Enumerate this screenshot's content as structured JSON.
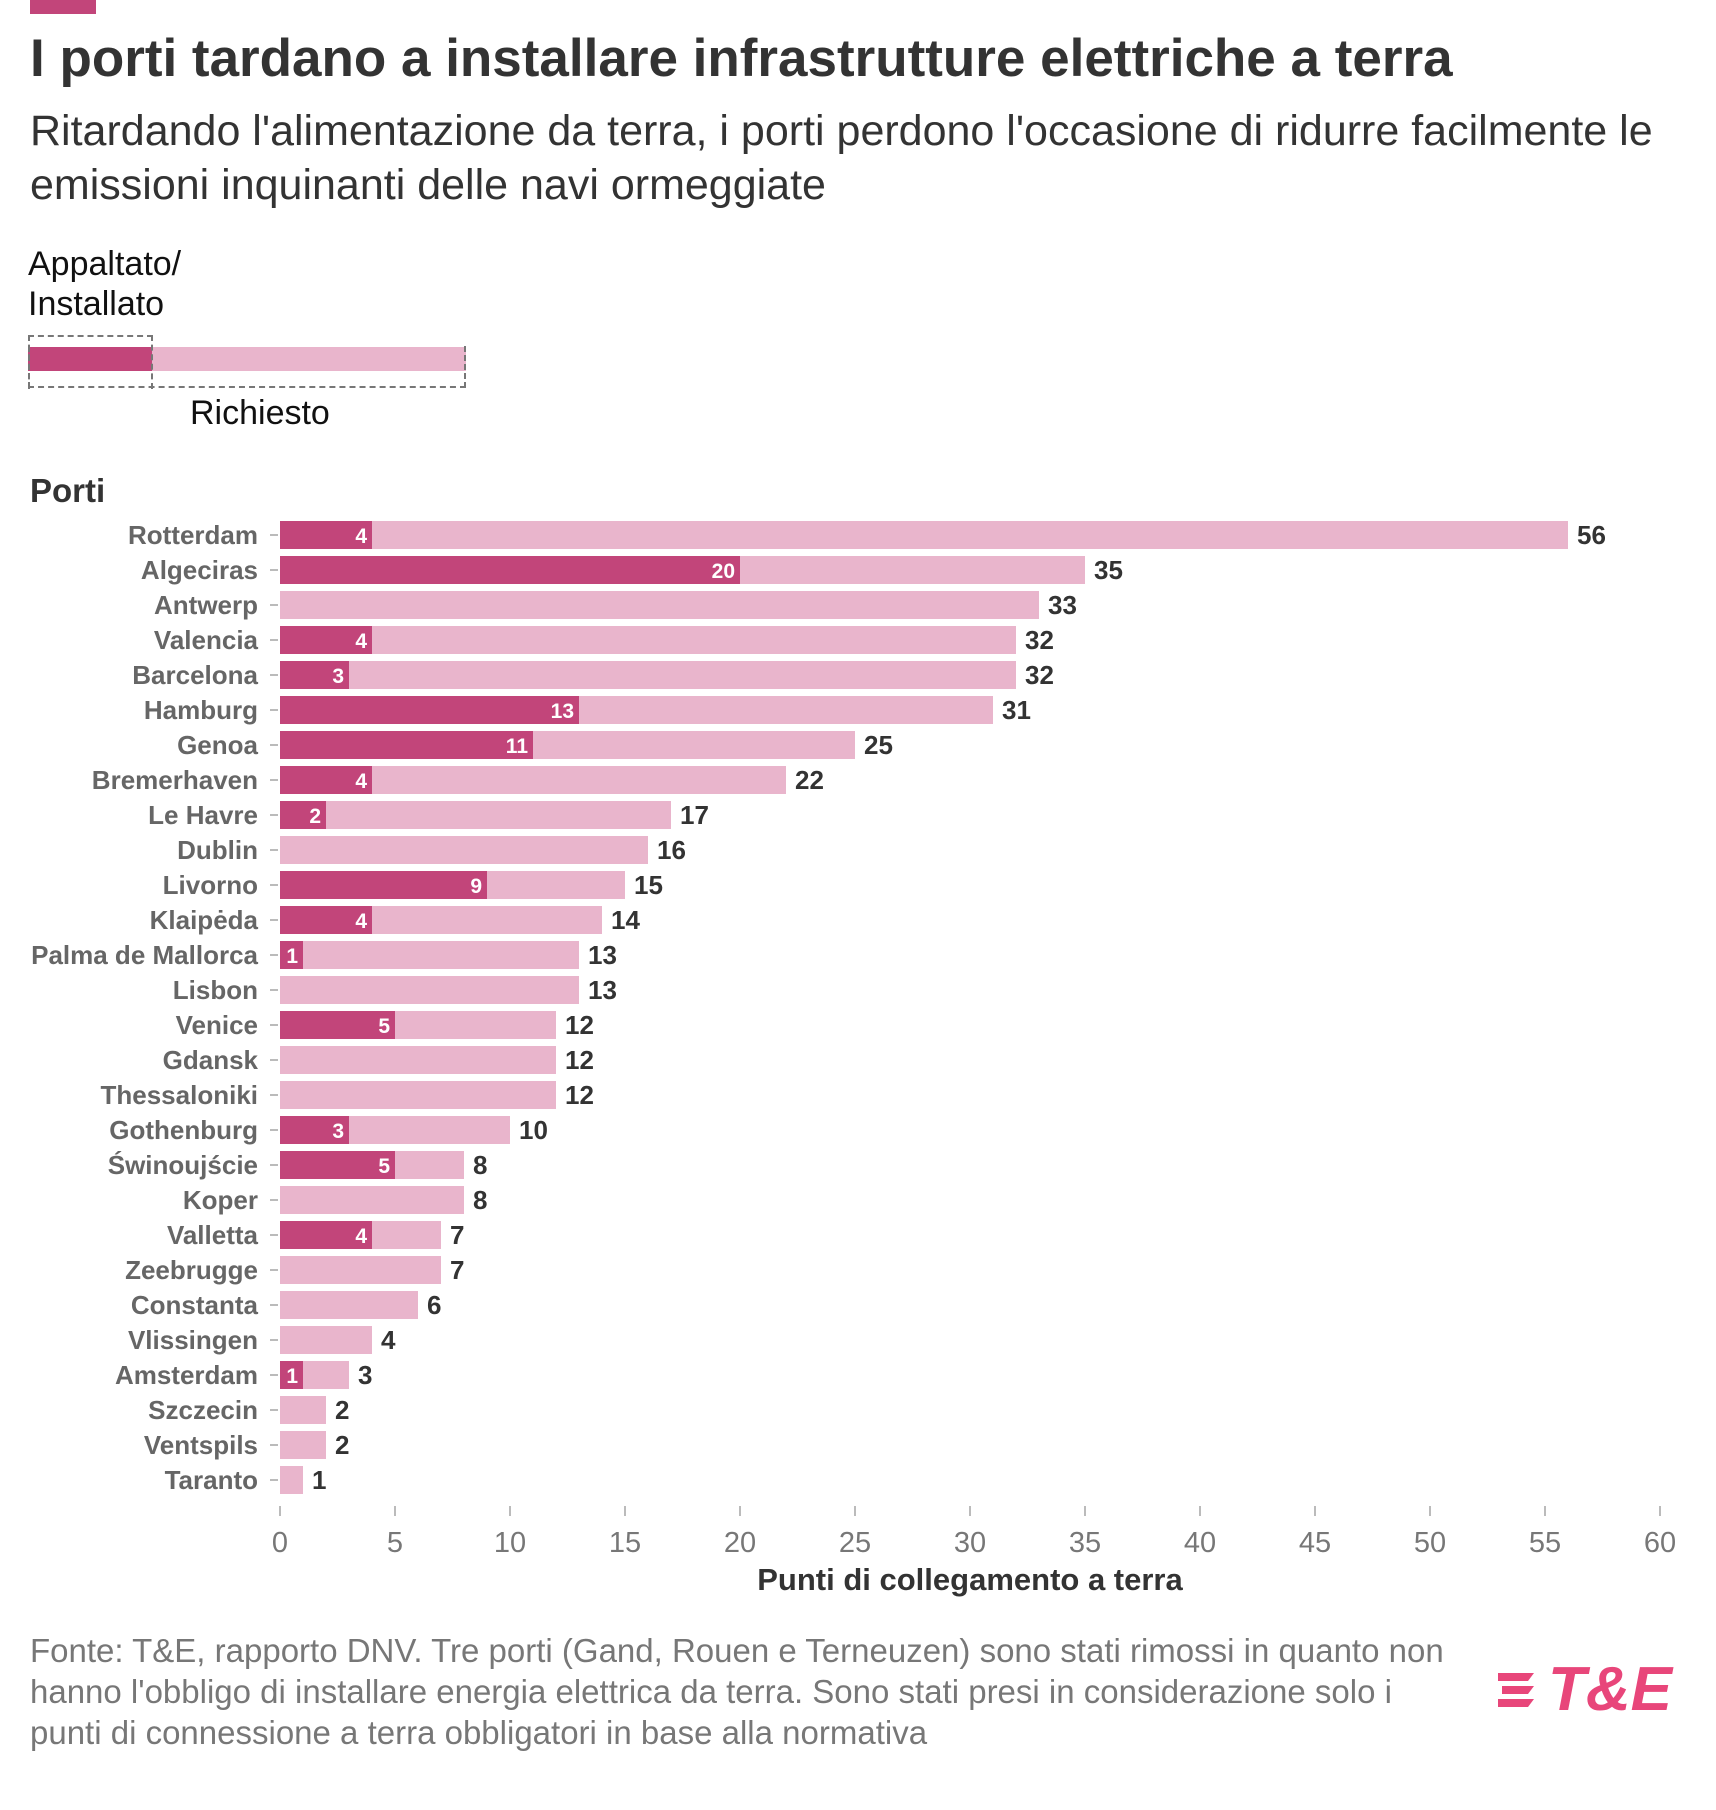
{
  "header": {
    "title": "I porti tardano a installare infrastrutture elettriche a terra",
    "subtitle": "Ritardando l'alimentazione da terra, i porti perdono l'occasione di ridurre facilmente le emissioni inquinanti delle navi ormeggiate"
  },
  "legend": {
    "contracted_label": "Appaltato/\nInstallato",
    "required_label": "Richiesto"
  },
  "colors": {
    "contracted": "#c2457a",
    "required": "#e9b5cc",
    "accent": "#c2457a",
    "logo": "#e8467a"
  },
  "footer": {
    "source": "Fonte: T&E, rapporto DNV. Tre porti (Gand, Rouen e Terneuzen) sono stati rimossi in quanto non hanno l'obbligo di installare energia elettrica da terra. Sono stati presi in considerazione solo i punti di connessione a terra obbligatori in base alla normativa",
    "logo_text": "T&E"
  },
  "chart_data": {
    "type": "bar",
    "orientation": "horizontal",
    "ylabel": "Porti",
    "xlabel": "Punti di collegamento a terra",
    "xlim": [
      0,
      60
    ],
    "xticks": [
      0,
      5,
      10,
      15,
      20,
      25,
      30,
      35,
      40,
      45,
      50,
      55,
      60
    ],
    "grid": false,
    "categories": [
      "Rotterdam",
      "Algeciras",
      "Antwerp",
      "Valencia",
      "Barcelona",
      "Hamburg",
      "Genoa",
      "Bremerhaven",
      "Le Havre",
      "Dublin",
      "Livorno",
      "Klaipėda",
      "Palma de Mallorca",
      "Lisbon",
      "Venice",
      "Gdansk",
      "Thessaloniki",
      "Gothenburg",
      "Świnoujście",
      "Koper",
      "Valletta",
      "Zeebrugge",
      "Constanta",
      "Vlissingen",
      "Amsterdam",
      "Szczecin",
      "Ventspils",
      "Taranto"
    ],
    "series": [
      {
        "name": "Appaltato/Installato",
        "values": [
          4,
          20,
          0,
          4,
          3,
          13,
          11,
          4,
          2,
          0,
          9,
          4,
          1,
          0,
          5,
          0,
          0,
          3,
          5,
          0,
          4,
          0,
          0,
          0,
          1,
          0,
          0,
          0
        ]
      },
      {
        "name": "Richiesto",
        "values": [
          56,
          35,
          33,
          32,
          32,
          31,
          25,
          22,
          17,
          16,
          15,
          14,
          13,
          13,
          12,
          12,
          12,
          10,
          8,
          8,
          7,
          7,
          6,
          4,
          3,
          2,
          2,
          1
        ]
      }
    ]
  }
}
